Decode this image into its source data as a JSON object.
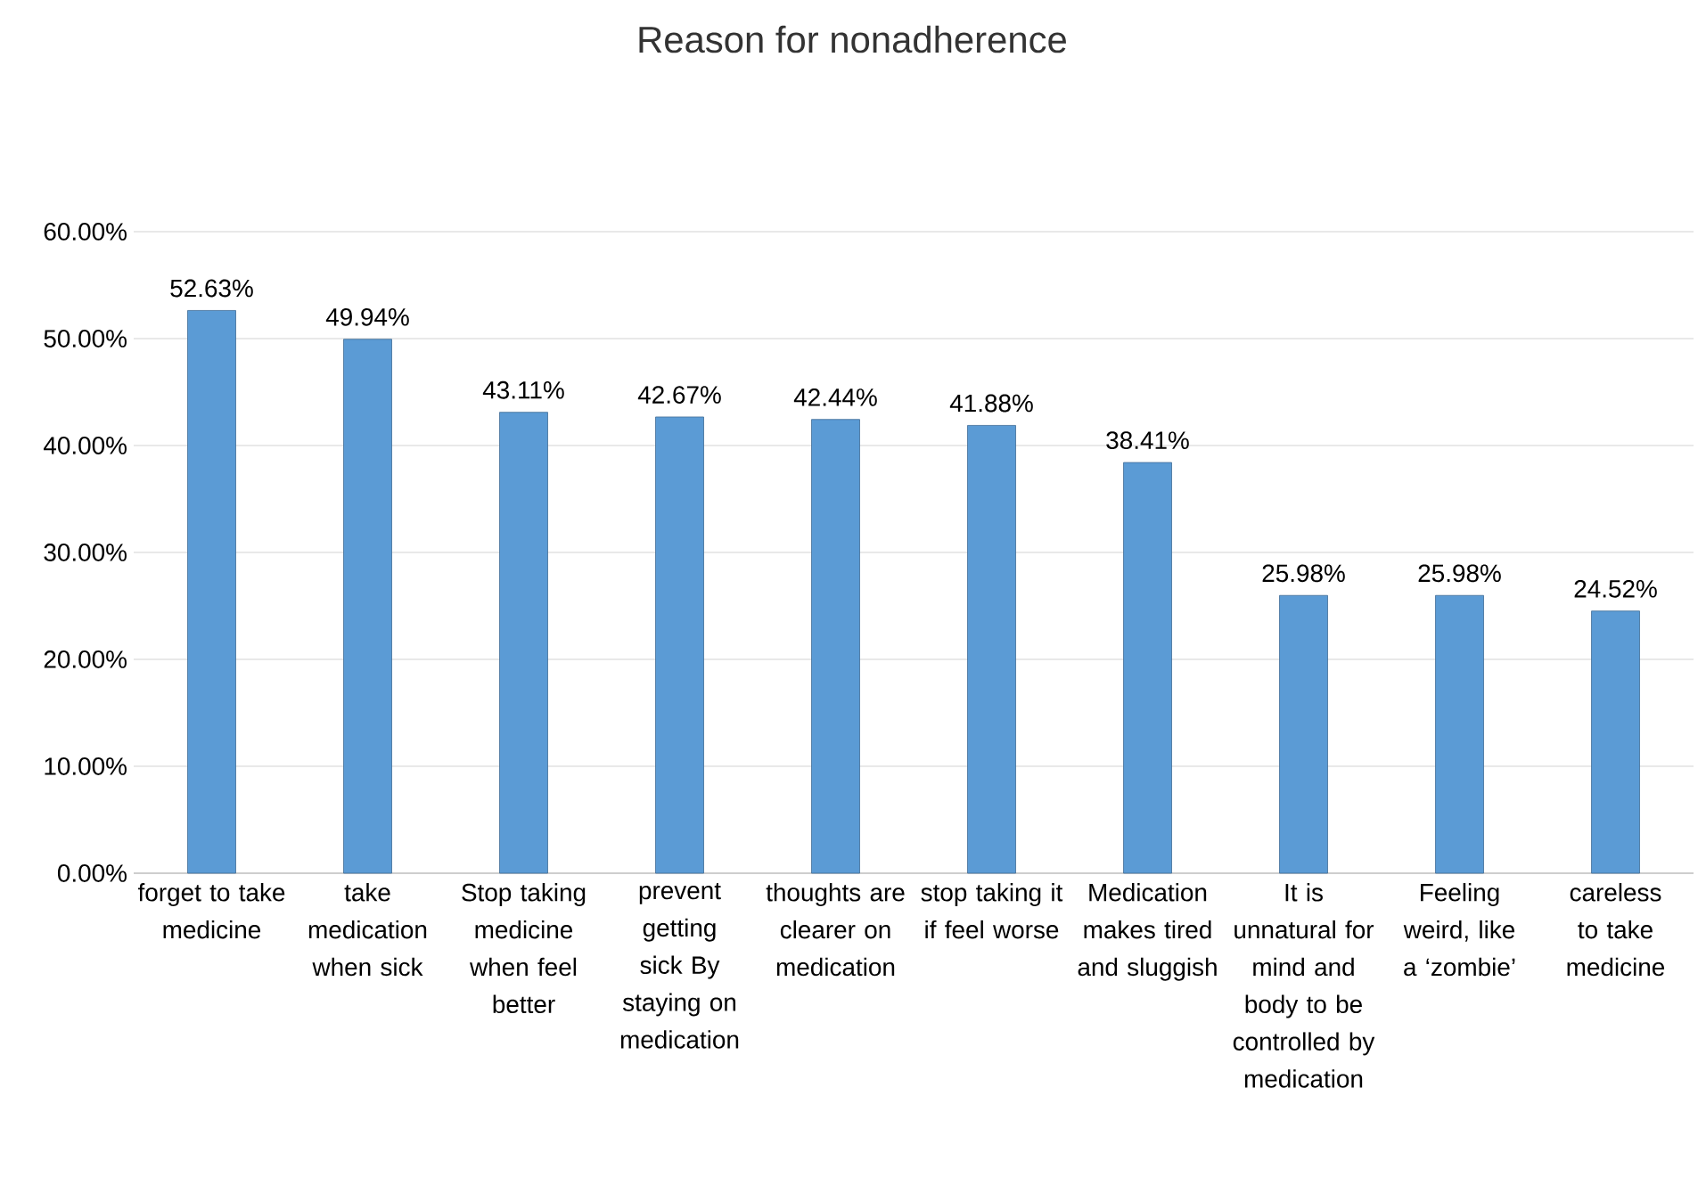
{
  "chart_data": {
    "type": "bar",
    "title": "Reason for nonadherence",
    "categories": [
      "forget to take medicine",
      "take medication when sick",
      "Stop  taking medicine when feel better",
      "prevent getting sick By staying on medication",
      "thoughts are clearer on medication",
      "stop taking it if  feel worse",
      "Medication makes tired and sluggish",
      "It is unnatural for mind and body to be controlled by medication",
      "Feeling weird, like a ‘zombie’",
      "careless  to take medicine"
    ],
    "values": [
      52.63,
      49.94,
      43.11,
      42.67,
      42.44,
      41.88,
      38.41,
      25.98,
      25.98,
      24.52
    ],
    "value_labels": [
      "52.63%",
      "49.94%",
      "43.11%",
      "42.67%",
      "42.44%",
      "41.88%",
      "38.41%",
      "25.98%",
      "25.98%",
      "24.52%"
    ],
    "color": "#5b9bd5",
    "ylim": [
      0,
      60
    ],
    "yticks": [
      {
        "value": 0,
        "label": "0.00%"
      },
      {
        "value": 10,
        "label": "10.00%"
      },
      {
        "value": 20,
        "label": "20.00%"
      },
      {
        "value": 30,
        "label": "30.00%"
      },
      {
        "value": 40,
        "label": "40.00%"
      },
      {
        "value": 50,
        "label": "50.00%"
      },
      {
        "value": 60,
        "label": "60.00%"
      }
    ],
    "grid": true
  }
}
